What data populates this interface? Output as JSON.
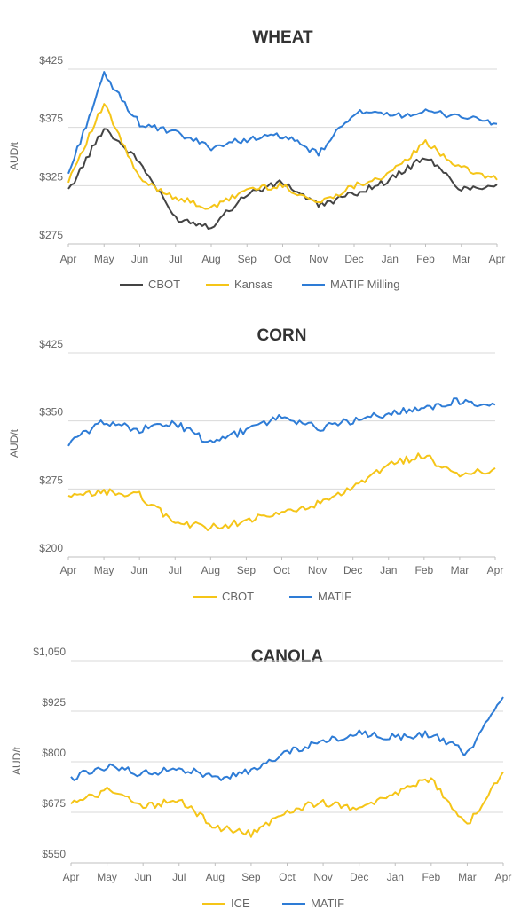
{
  "colors": {
    "cbot_wheat": "#444444",
    "yellow": "#f5c518",
    "blue": "#2e7cd6",
    "grid": "#d9d9d9"
  },
  "chart_data": [
    {
      "type": "line",
      "title": "WHEAT",
      "ylabel": "AUD/t",
      "ylim": [
        275,
        425
      ],
      "yticks": [
        275,
        325,
        375,
        425
      ],
      "ytick_labels": [
        "$275",
        "$325",
        "$375",
        "$425"
      ],
      "x": [
        "Apr",
        "May",
        "Jun",
        "Jul",
        "Aug",
        "Sep",
        "Oct",
        "Nov",
        "Dec",
        "Jan",
        "Feb",
        "Mar",
        "Apr"
      ],
      "grid": true,
      "legend": "bottom",
      "series": [
        {
          "name": "CBOT",
          "color": "#444444",
          "values": [
            320,
            375,
            345,
            297,
            290,
            318,
            328,
            308,
            318,
            330,
            350,
            322,
            326
          ]
        },
        {
          "name": "Kansas",
          "color": "#f5c518",
          "values": [
            330,
            395,
            330,
            315,
            305,
            322,
            325,
            310,
            325,
            335,
            362,
            340,
            330
          ]
        },
        {
          "name": "MATIF Milling",
          "color": "#2e7cd6",
          "values": [
            335,
            420,
            378,
            370,
            358,
            365,
            368,
            352,
            388,
            385,
            388,
            385,
            378
          ]
        }
      ]
    },
    {
      "type": "line",
      "title": "CORN",
      "ylabel": "AUD/t",
      "ylim": [
        200,
        425
      ],
      "yticks": [
        200,
        275,
        350,
        425
      ],
      "ytick_labels": [
        "$200",
        "$275",
        "$350",
        "$425"
      ],
      "x": [
        "Apr",
        "May",
        "Jun",
        "Jul",
        "Aug",
        "Sep",
        "Oct",
        "Nov",
        "Dec",
        "Jan",
        "Feb",
        "Mar",
        "Apr"
      ],
      "grid": true,
      "legend": "bottom",
      "series": [
        {
          "name": "CBOT",
          "color": "#f5c518",
          "values": [
            265,
            272,
            268,
            238,
            232,
            240,
            248,
            258,
            275,
            302,
            312,
            288,
            298
          ]
        },
        {
          "name": "MATIF",
          "color": "#2e7cd6",
          "values": [
            325,
            350,
            340,
            348,
            325,
            340,
            355,
            342,
            350,
            358,
            365,
            372,
            368
          ]
        }
      ]
    },
    {
      "type": "line",
      "title": "CANOLA",
      "ylabel": "AUD/t",
      "ylim": [
        550,
        1050
      ],
      "yticks": [
        550,
        675,
        800,
        925,
        1050
      ],
      "ytick_labels": [
        "$550",
        "$675",
        "$800",
        "$925",
        "$1,050"
      ],
      "x": [
        "Apr",
        "May",
        "Jun",
        "Jul",
        "Aug",
        "Sep",
        "Oct",
        "Nov",
        "Dec",
        "Jan",
        "Feb",
        "Mar",
        "Apr"
      ],
      "grid": true,
      "legend": "bottom",
      "series": [
        {
          "name": "ICE",
          "color": "#f5c518",
          "values": [
            695,
            730,
            690,
            705,
            640,
            620,
            680,
            700,
            680,
            720,
            760,
            640,
            775
          ]
        },
        {
          "name": "MATIF",
          "color": "#2e7cd6",
          "values": [
            760,
            790,
            770,
            785,
            760,
            775,
            825,
            850,
            870,
            860,
            870,
            820,
            960
          ]
        }
      ]
    }
  ]
}
